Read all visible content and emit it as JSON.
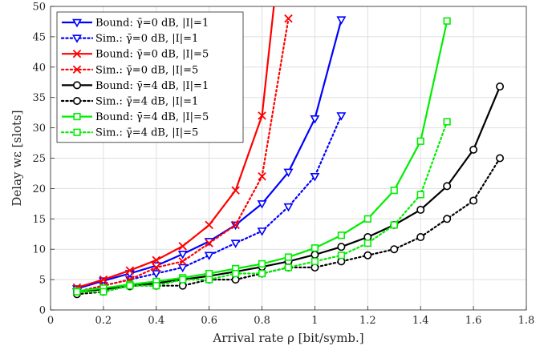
{
  "chart_data": {
    "type": "line",
    "xlabel": "Arrival rate ρ [bit/symb.]",
    "ylabel": "Delay wε [slots]",
    "xlim": [
      0,
      1.8
    ],
    "ylim": [
      0,
      50
    ],
    "xticks": [
      "0",
      "0.2",
      "0.4",
      "0.6",
      "0.8",
      "1",
      "1.2",
      "1.4",
      "1.6",
      "1.8"
    ],
    "yticks": [
      "0",
      "5",
      "10",
      "15",
      "20",
      "25",
      "30",
      "35",
      "40",
      "45",
      "50"
    ],
    "grid": true,
    "legend_position": "top-left",
    "series": [
      {
        "name": "Bound:  γ̄=0 dB, |I|=1",
        "color": "#0000ff",
        "style": "solid",
        "marker": "triangle-down",
        "x": [
          0.1,
          0.2,
          0.3,
          0.4,
          0.5,
          0.6,
          0.7,
          0.8,
          0.9,
          1.0,
          1.1
        ],
        "y": [
          3.5,
          4.8,
          6.0,
          7.3,
          9.2,
          11.3,
          14.0,
          17.5,
          22.7,
          31.5,
          47.8
        ]
      },
      {
        "name": "Sim.:  γ̄=0 dB, |I|=1",
        "color": "#0000ff",
        "style": "dotted",
        "marker": "triangle-down",
        "x": [
          0.1,
          0.2,
          0.3,
          0.4,
          0.5,
          0.6,
          0.7,
          0.8,
          0.9,
          1.0,
          1.1
        ],
        "y": [
          3.0,
          4.0,
          5.0,
          6.0,
          7.0,
          9.0,
          11.0,
          13.0,
          17.0,
          22.0,
          32.0
        ]
      },
      {
        "name": "Bound:  γ̄=0 dB, |I|=5",
        "color": "#ff0000",
        "style": "solid",
        "marker": "x",
        "x": [
          0.1,
          0.2,
          0.3,
          0.4,
          0.5,
          0.6,
          0.7,
          0.8,
          0.85
        ],
        "y": [
          3.7,
          5.0,
          6.5,
          8.2,
          10.5,
          14.0,
          19.7,
          32.0,
          52.0
        ]
      },
      {
        "name": "Sim.:  γ̄=0 dB, |I|=5",
        "color": "#ff0000",
        "style": "dotted",
        "marker": "x",
        "x": [
          0.1,
          0.2,
          0.3,
          0.4,
          0.5,
          0.6,
          0.7,
          0.8,
          0.9
        ],
        "y": [
          3.0,
          4.0,
          5.0,
          7.0,
          8.0,
          11.0,
          14.0,
          22.0,
          48.0
        ]
      },
      {
        "name": "Bound:  γ̄=4 dB, |I|=1",
        "color": "#000000",
        "style": "solid",
        "marker": "circle",
        "x": [
          0.1,
          0.2,
          0.3,
          0.4,
          0.5,
          0.6,
          0.7,
          0.8,
          0.9,
          1.0,
          1.1,
          1.2,
          1.3,
          1.4,
          1.5,
          1.6,
          1.7
        ],
        "y": [
          3.0,
          3.4,
          3.9,
          4.4,
          5.0,
          5.6,
          6.3,
          7.1,
          8.0,
          9.1,
          10.4,
          12.0,
          14.0,
          16.5,
          20.4,
          26.4,
          36.8
        ]
      },
      {
        "name": "Sim.:  γ̄=4 dB, |I|=1",
        "color": "#000000",
        "style": "dotted",
        "marker": "circle",
        "x": [
          0.1,
          0.2,
          0.3,
          0.4,
          0.5,
          0.6,
          0.7,
          0.8,
          0.9,
          1.0,
          1.1,
          1.2,
          1.3,
          1.4,
          1.5,
          1.6,
          1.7
        ],
        "y": [
          2.6,
          3.0,
          4.0,
          4.0,
          4.0,
          5.0,
          5.0,
          6.0,
          7.0,
          7.0,
          8.0,
          9.0,
          10.0,
          12.0,
          15.0,
          18.0,
          25.0
        ]
      },
      {
        "name": "Bound:  γ̄=4 dB, |I|=5",
        "color": "#00ee00",
        "style": "solid",
        "marker": "square",
        "x": [
          0.1,
          0.2,
          0.3,
          0.4,
          0.5,
          0.6,
          0.7,
          0.8,
          0.9,
          1.0,
          1.1,
          1.2,
          1.3,
          1.4,
          1.5
        ],
        "y": [
          3.1,
          3.6,
          4.2,
          4.7,
          5.3,
          6.0,
          6.8,
          7.6,
          8.7,
          10.2,
          12.3,
          15.0,
          19.7,
          27.8,
          47.6
        ]
      },
      {
        "name": "Sim.:  γ̄=4 dB, |I|=5",
        "color": "#00ee00",
        "style": "dotted",
        "marker": "square",
        "x": [
          0.1,
          0.2,
          0.3,
          0.4,
          0.5,
          0.6,
          0.7,
          0.8,
          0.9,
          1.0,
          1.1,
          1.2,
          1.3,
          1.4,
          1.5
        ],
        "y": [
          3.0,
          3.0,
          4.0,
          4.0,
          5.0,
          5.0,
          6.0,
          6.0,
          7.0,
          8.0,
          9.0,
          11.0,
          14.0,
          19.0,
          31.0
        ]
      }
    ]
  }
}
